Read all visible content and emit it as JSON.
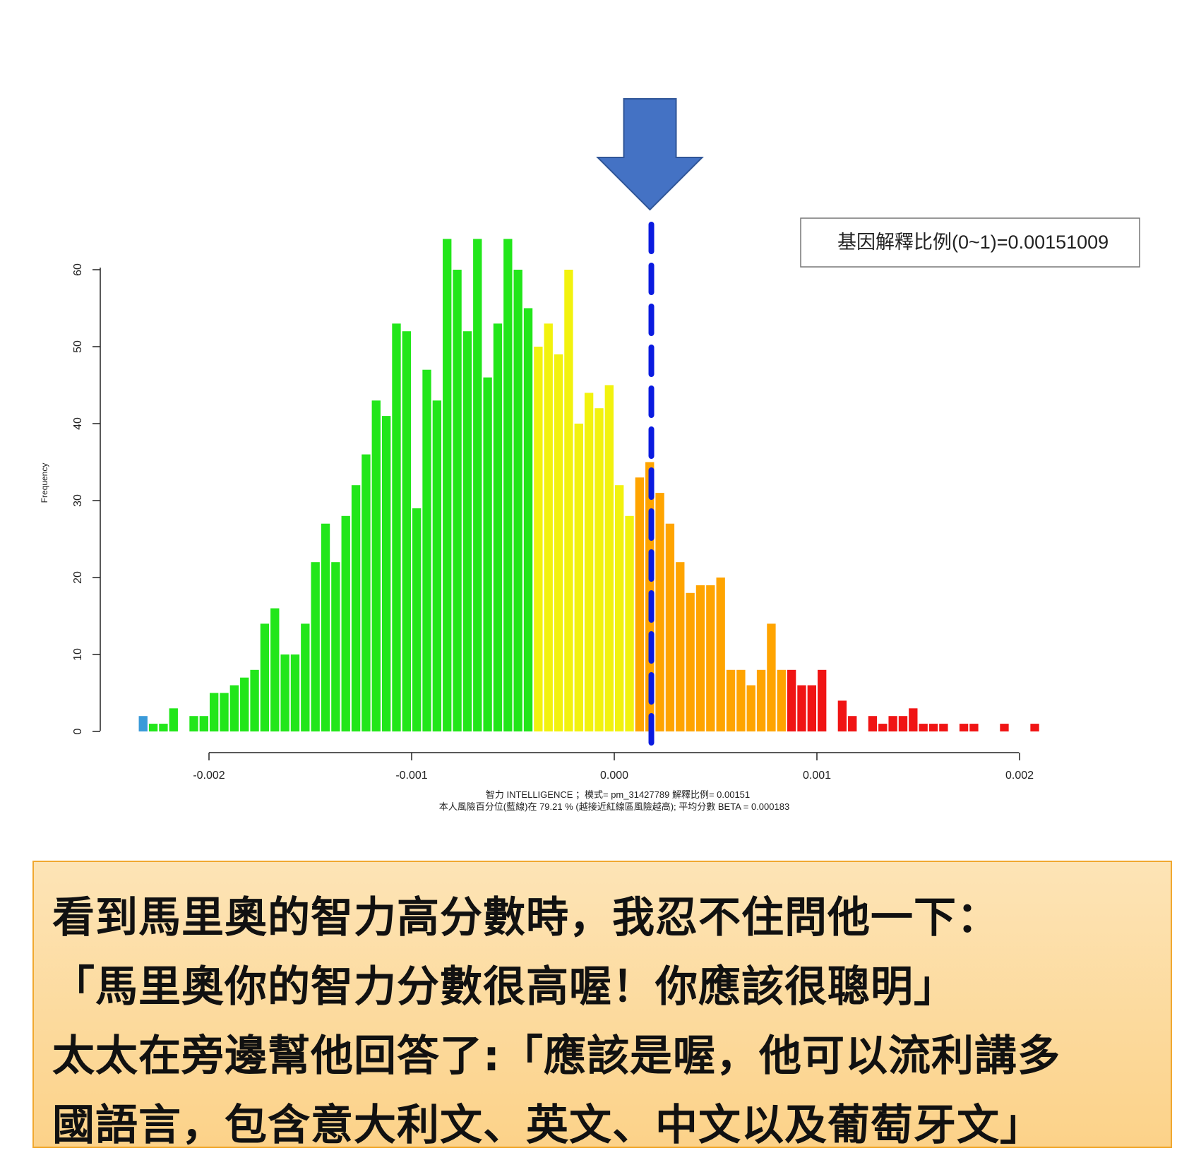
{
  "chart_data": {
    "type": "bar",
    "ylabel": "Frequency",
    "xlabel_lines": [
      "智力 INTELLIGENCE ；模式= pm_31427789  解釋比例= 0.00151",
      "本人風險百分位(藍線)在 79.21 % (越接近紅線區風險越高); 平均分數 BETA = 0.000183"
    ],
    "legend": "基因解釋比例(0~1)=0.00151009",
    "x_ticks": [
      "-0.002",
      "-0.001",
      "0.000",
      "0.001",
      "0.002"
    ],
    "x_tick_values": [
      -0.002,
      -0.001,
      0.0,
      0.001,
      0.002
    ],
    "y_ticks": [
      "0",
      "10",
      "20",
      "30",
      "40",
      "50",
      "60"
    ],
    "ylim": [
      0,
      60
    ],
    "bin_width": 5e-05,
    "first_bin_center": -0.002325,
    "values": [
      2,
      1,
      1,
      3,
      0,
      2,
      2,
      5,
      5,
      6,
      7,
      8,
      14,
      16,
      10,
      10,
      14,
      22,
      27,
      22,
      28,
      32,
      36,
      43,
      41,
      53,
      52,
      29,
      47,
      43,
      64,
      60,
      52,
      64,
      46,
      53,
      64,
      60,
      55,
      50,
      53,
      49,
      60,
      40,
      44,
      42,
      45,
      32,
      28,
      33,
      35,
      31,
      27,
      22,
      18,
      19,
      19,
      20,
      8,
      8,
      6,
      8,
      14,
      8,
      8,
      6,
      6,
      8,
      0,
      4,
      2,
      0,
      2,
      1,
      2,
      2,
      3,
      1,
      1,
      1,
      0,
      1,
      1,
      0,
      0,
      1,
      0,
      0,
      1
    ],
    "color_groups": [
      {
        "upto_bin": 0,
        "color": "#3a9ad9"
      },
      {
        "upto_bin": 38,
        "color": "#22e61a"
      },
      {
        "upto_bin": 48,
        "color": "#f2f20e"
      },
      {
        "upto_bin": 63,
        "color": "#ffa400"
      },
      {
        "upto_bin": 88,
        "color": "#f01414"
      }
    ],
    "marker_x": 0.000183,
    "marker_color": "#0a1be0",
    "arrow_color": "#4472c4",
    "grid": false
  },
  "caption": {
    "lines": [
      "看到馬里奧的智力高分數時，我忍不住問他一下：",
      "「馬里奧你的智力分數很高喔！你應該很聰明」",
      "太太在旁邊幫他回答了:「應該是喔，他可以流利講多",
      "國語言，包含意大利文、英文、中文以及葡萄牙文」"
    ]
  }
}
